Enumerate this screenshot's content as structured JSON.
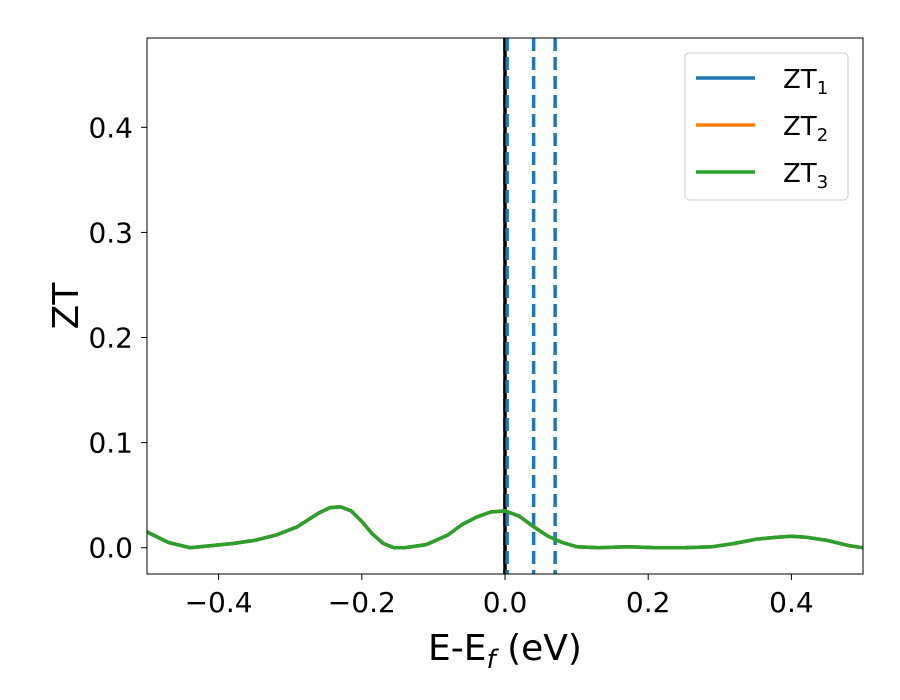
{
  "chart_data": {
    "type": "line",
    "xlabel": "E-E",
    "xlabel_sub": "f",
    "xlabel_unit": " (eV)",
    "ylabel": "ZT",
    "xlim": [
      -0.5,
      0.5
    ],
    "ylim": [
      -0.025,
      0.485
    ],
    "x_ticks": [
      -0.4,
      -0.2,
      0.0,
      0.2,
      0.4
    ],
    "x_tick_labels": [
      "−0.4",
      "−0.2",
      "0.0",
      "0.2",
      "0.4"
    ],
    "y_ticks": [
      0.0,
      0.1,
      0.2,
      0.3,
      0.4
    ],
    "y_tick_labels": [
      "0.0",
      "0.1",
      "0.2",
      "0.3",
      "0.4"
    ],
    "grid": false,
    "legend_position": "top-right",
    "series": [
      {
        "name": "ZT",
        "sub": "1",
        "color": "#1f77b4"
      },
      {
        "name": "ZT",
        "sub": "2",
        "color": "#ff7f0e"
      },
      {
        "name": "ZT",
        "sub": "3",
        "color": "#2ca02c"
      }
    ],
    "x": [
      -0.5,
      -0.47,
      -0.44,
      -0.41,
      -0.38,
      -0.35,
      -0.32,
      -0.29,
      -0.26,
      -0.245,
      -0.23,
      -0.215,
      -0.2,
      -0.185,
      -0.17,
      -0.155,
      -0.14,
      -0.11,
      -0.08,
      -0.06,
      -0.04,
      -0.02,
      0.0,
      0.02,
      0.04,
      0.06,
      0.08,
      0.1,
      0.13,
      0.17,
      0.21,
      0.25,
      0.29,
      0.32,
      0.35,
      0.38,
      0.4,
      0.42,
      0.45,
      0.48,
      0.5
    ],
    "y": [
      0.015,
      0.005,
      0.0,
      0.002,
      0.004,
      0.007,
      0.012,
      0.02,
      0.033,
      0.038,
      0.039,
      0.035,
      0.025,
      0.013,
      0.004,
      0.0,
      0.0,
      0.003,
      0.012,
      0.022,
      0.029,
      0.034,
      0.035,
      0.03,
      0.02,
      0.011,
      0.005,
      0.001,
      0.0,
      0.001,
      0.0,
      0.0,
      0.001,
      0.004,
      0.008,
      0.01,
      0.011,
      0.01,
      0.007,
      0.002,
      0.0
    ],
    "vertical_lines": [
      {
        "x": 0.0,
        "style": "solid",
        "color": "#000000"
      },
      {
        "x": 0.0,
        "style": "dashed",
        "color": "#000000"
      },
      {
        "x": 0.003,
        "style": "dashed",
        "color": "#1f77b4"
      },
      {
        "x": 0.04,
        "style": "dashed",
        "color": "#1f77b4"
      },
      {
        "x": 0.07,
        "style": "dashed",
        "color": "#1f77b4"
      }
    ]
  }
}
